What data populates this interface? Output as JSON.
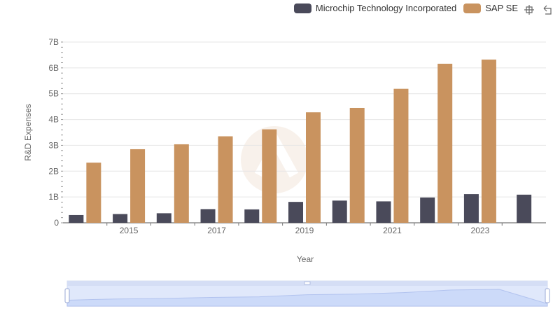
{
  "chart_data": {
    "type": "bar",
    "xlabel": "Year",
    "ylabel": "R&D Expenses",
    "categories": [
      "2014",
      "2015",
      "2016",
      "2017",
      "2018",
      "2019",
      "2020",
      "2021",
      "2022",
      "2023",
      "2024"
    ],
    "x_tick_labels": [
      "2015",
      "2017",
      "2019",
      "2021",
      "2023"
    ],
    "y_tick_labels": [
      "0",
      "1B",
      "2B",
      "3B",
      "4B",
      "5B",
      "6B",
      "7B"
    ],
    "ylim": [
      0,
      7000000000
    ],
    "grid": true,
    "legend_position": "top-right",
    "series": [
      {
        "name": "Microchip Technology Incorporated",
        "color": "#4a4a5a",
        "values": [
          300000000,
          340000000,
          370000000,
          530000000,
          520000000,
          810000000,
          860000000,
          830000000,
          980000000,
          1110000000,
          1090000000
        ]
      },
      {
        "name": "SAP SE",
        "color": "#c9935f",
        "values": [
          2330000000,
          2850000000,
          3040000000,
          3350000000,
          3620000000,
          4280000000,
          4450000000,
          5190000000,
          6160000000,
          6320000000,
          null
        ]
      }
    ]
  },
  "toolbox": {
    "icons": [
      "zoom-icon",
      "restore-icon"
    ]
  },
  "datazoom": {
    "start_percent": 0,
    "end_percent": 100
  }
}
